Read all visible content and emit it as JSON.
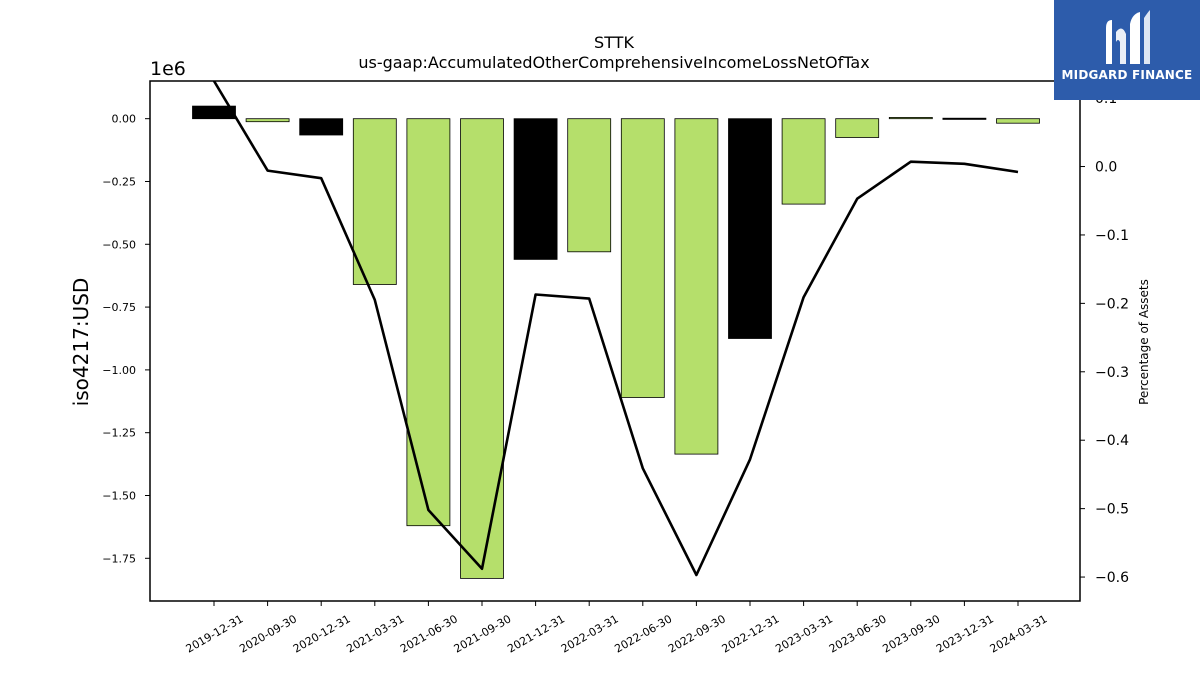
{
  "chart_data": {
    "type": "bar",
    "title": "STTK",
    "subtitle": "us-gaap:AccumulatedOtherComprehensiveIncomeLossNetOfTax",
    "ylabel": "iso4217:USD",
    "y_offset_label": "1e6",
    "y2label": "Percentage of Assets",
    "categories": [
      "2019-12-31",
      "2020-09-30",
      "2020-12-31",
      "2021-03-31",
      "2021-06-30",
      "2021-09-30",
      "2021-12-31",
      "2022-03-31",
      "2022-06-30",
      "2022-09-30",
      "2022-12-31",
      "2023-03-31",
      "2023-06-30",
      "2023-09-30",
      "2023-12-31",
      "2024-03-31"
    ],
    "series": [
      {
        "axis": "left",
        "kind": "bar",
        "values": [
          0.05,
          -0.012,
          -0.065,
          -0.66,
          -1.62,
          -1.83,
          -0.56,
          -0.53,
          -1.11,
          -1.335,
          -0.875,
          -0.34,
          -0.075,
          0.005,
          0.002,
          -0.018
        ],
        "bar_colors": [
          "#000000",
          "#b5df6b",
          "#000000",
          "#b5df6b",
          "#b5df6b",
          "#b5df6b",
          "#000000",
          "#b5df6b",
          "#b5df6b",
          "#b5df6b",
          "#000000",
          "#b5df6b",
          "#b5df6b",
          "#b5df6b",
          "#000000",
          "#b5df6b"
        ]
      },
      {
        "axis": "right",
        "kind": "line",
        "color": "#000000",
        "values": [
          0.125,
          -0.006,
          -0.017,
          -0.195,
          -0.502,
          -0.588,
          -0.187,
          -0.193,
          -0.441,
          -0.597,
          -0.428,
          -0.191,
          -0.047,
          0.007,
          0.004,
          -0.008
        ]
      }
    ],
    "ylim": [
      -1.92,
      0.15
    ],
    "yticks": [
      0.0,
      -0.25,
      -0.5,
      -0.75,
      -1.0,
      -1.25,
      -1.5,
      -1.75
    ],
    "ytick_labels": [
      "0.00",
      "−0.25",
      "−0.50",
      "−0.75",
      "−1.00",
      "−1.25",
      "−1.50",
      "−1.75"
    ],
    "y2lim": [
      -0.635,
      0.125
    ],
    "y2ticks": [
      0.1,
      0.0,
      -0.1,
      -0.2,
      -0.3,
      -0.4,
      -0.5,
      -0.6
    ],
    "y2tick_labels": [
      "0.1",
      "0.0",
      "−0.1",
      "−0.2",
      "−0.3",
      "−0.4",
      "−0.5",
      "−0.6"
    ],
    "grid": false,
    "legend": "none"
  },
  "logo": {
    "text": "MIDGARD FINANCE",
    "background": "#2d5cab"
  }
}
